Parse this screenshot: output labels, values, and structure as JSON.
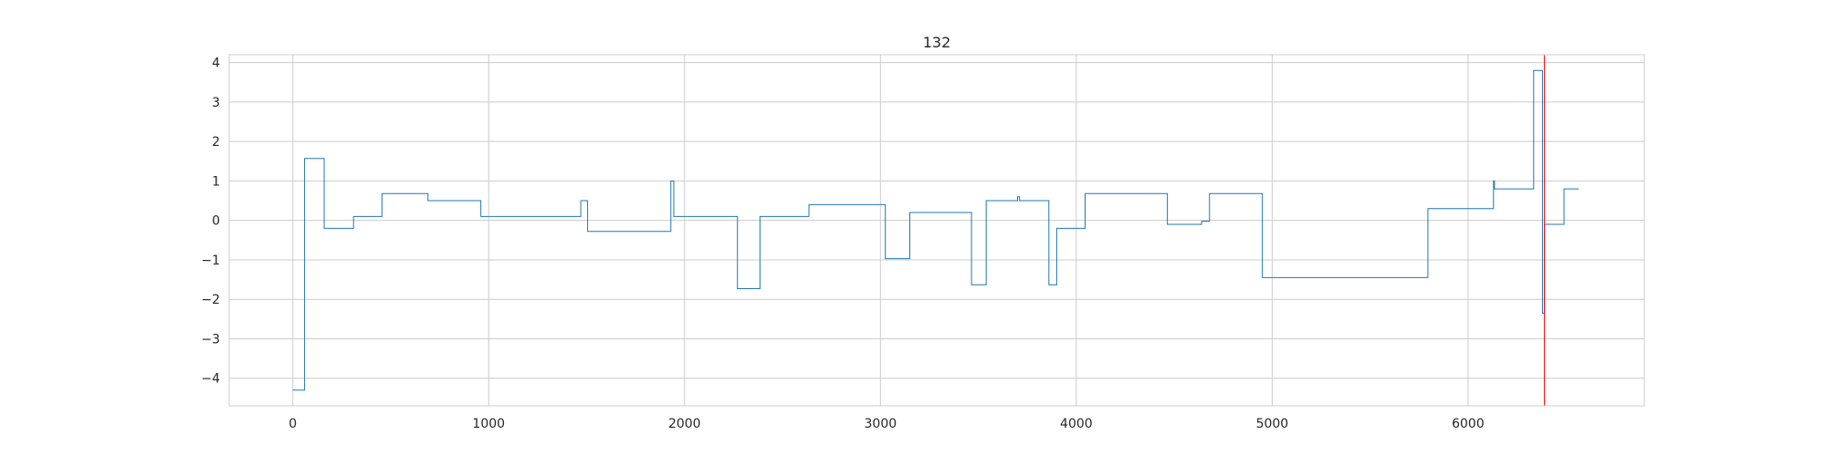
{
  "chart_data": {
    "type": "line",
    "title": "132",
    "xlabel": "",
    "ylabel": "",
    "xlim": [
      -325,
      6900
    ],
    "ylim": [
      -4.7,
      4.2
    ],
    "x_ticks": [
      0,
      1000,
      2000,
      3000,
      4000,
      5000,
      6000
    ],
    "x_tick_labels": [
      "0",
      "1000",
      "2000",
      "3000",
      "4000",
      "5000",
      "6000"
    ],
    "y_ticks": [
      -4,
      -3,
      -2,
      -1,
      0,
      1,
      2,
      3,
      4
    ],
    "y_tick_labels": [
      "−4",
      "−3",
      "−2",
      "−1",
      "0",
      "1",
      "2",
      "3",
      "4"
    ],
    "grid": true,
    "series": [
      {
        "color": "#1f77b4",
        "step": true,
        "points": [
          [
            0,
            -4.3
          ],
          [
            60,
            1.57
          ],
          [
            160,
            -0.2
          ],
          [
            310,
            0.1
          ],
          [
            455,
            0.68
          ],
          [
            690,
            0.5
          ],
          [
            960,
            0.1
          ],
          [
            1470,
            0.5
          ],
          [
            1505,
            -0.28
          ],
          [
            1930,
            1.0
          ],
          [
            1945,
            0.1
          ],
          [
            2270,
            -1.73
          ],
          [
            2385,
            0.1
          ],
          [
            2635,
            0.4
          ],
          [
            3025,
            -0.97
          ],
          [
            3150,
            0.2
          ],
          [
            3465,
            -1.63
          ],
          [
            3540,
            0.5
          ],
          [
            3700,
            0.6
          ],
          [
            3710,
            0.5
          ],
          [
            3860,
            -1.63
          ],
          [
            3900,
            -0.2
          ],
          [
            4045,
            0.68
          ],
          [
            4465,
            -0.1
          ],
          [
            4640,
            -0.02
          ],
          [
            4680,
            0.68
          ],
          [
            4950,
            -1.45
          ],
          [
            5795,
            0.3
          ],
          [
            6130,
            1.0
          ],
          [
            6135,
            0.8
          ],
          [
            6335,
            3.8
          ],
          [
            6380,
            -2.35
          ],
          [
            6390,
            -0.1
          ],
          [
            6490,
            0.8
          ],
          [
            6565,
            0.8
          ]
        ]
      }
    ],
    "vertical_lines": [
      {
        "x": 6390,
        "color": "#ff0000"
      }
    ]
  }
}
